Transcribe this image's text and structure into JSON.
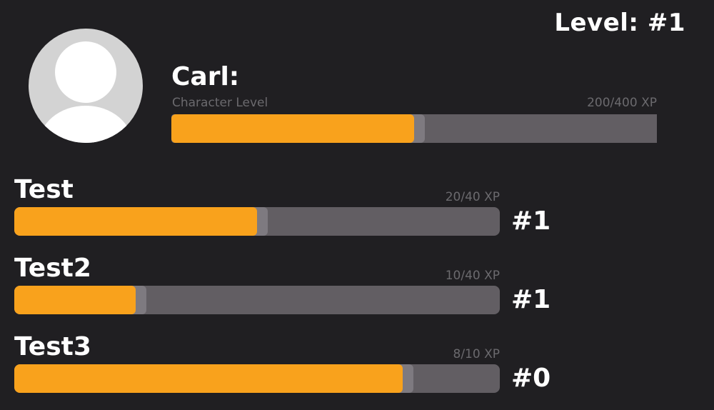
{
  "level_label": "Level: #1",
  "character": {
    "name": "Carl:",
    "subtitle": "Character Level",
    "xp_text": "200/400 XP",
    "progress": 0.5
  },
  "skills": [
    {
      "name": "Test",
      "xp_text": "20/40 XP",
      "level": "#1",
      "progress": 0.5
    },
    {
      "name": "Test2",
      "xp_text": "10/40 XP",
      "level": "#1",
      "progress": 0.25
    },
    {
      "name": "Test3",
      "xp_text": "8/10 XP",
      "level": "#0",
      "progress": 0.8
    }
  ],
  "colors": {
    "background": "#201f22",
    "bar_track": "#625e63",
    "bar_fill": "#f9a21c",
    "muted_text": "#6b6a6e"
  },
  "icons": {
    "avatar": "user-avatar-placeholder-icon"
  }
}
